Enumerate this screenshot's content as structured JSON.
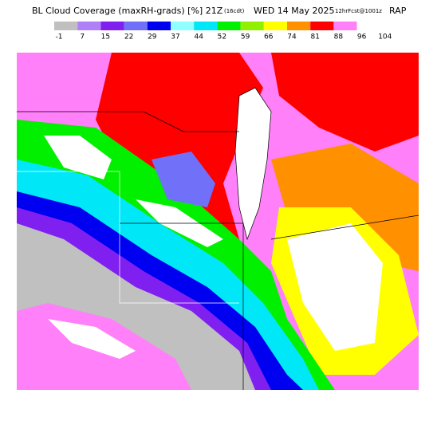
{
  "header": {
    "title": "BL Cloud Coverage (maxRH-grads) [%] 21Z",
    "time_zone": "(16cdt)",
    "date": "WED 14 May 2025",
    "forecast": "12hrFcst@1001z",
    "model": "RAP"
  },
  "legend": {
    "labels": [
      "-1",
      "7",
      "15",
      "22",
      "29",
      "37",
      "44",
      "52",
      "59",
      "66",
      "74",
      "81",
      "88",
      "96",
      "104"
    ],
    "colors": [
      "#c0c0c0",
      "#b080f8",
      "#8020f0",
      "#7070f8",
      "#0000f0",
      "#90ffff",
      "#00e8f8",
      "#00f000",
      "#90f000",
      "#ffff00",
      "#ff9000",
      "#ff0000",
      "#ff80f8",
      "#ffffff"
    ]
  }
}
